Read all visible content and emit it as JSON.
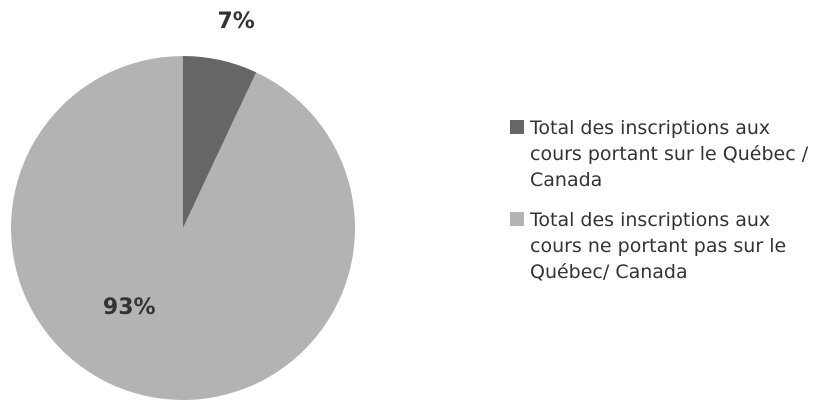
{
  "chart_data": {
    "type": "pie",
    "categories": [
      "Total des inscriptions aux cours portant sur le Québec / Canada",
      "Total des inscriptions aux cours ne portant pas sur le Québec/ Canada"
    ],
    "values": [
      7,
      93
    ],
    "value_labels": [
      "7%",
      "93%"
    ],
    "colors": [
      "#666666",
      "#b3b3b3"
    ],
    "legend": "right"
  }
}
